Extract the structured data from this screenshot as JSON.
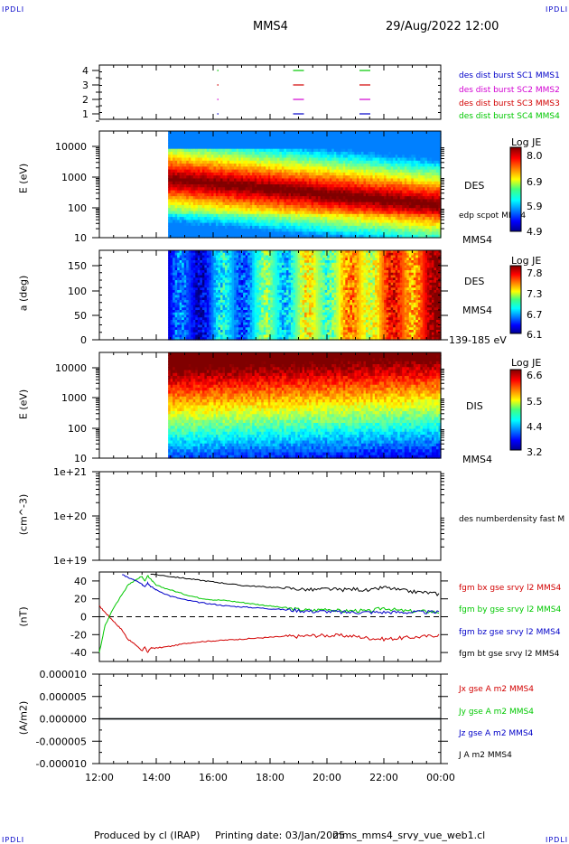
{
  "header": {
    "corner_tl": "IPDLI",
    "corner_tr": "IPDLI",
    "corner_bl": "IPDLI",
    "corner_br": "IPDLI",
    "spacecraft": "MMS4",
    "datetime": "29/Aug/2022 12:00"
  },
  "footer": {
    "produced_by": "Produced by cl (IRAP)",
    "printing_date": "Printing date: 03/Jan/2025",
    "filename": "mms_mms4_srvy_vue_web1.cl"
  },
  "colors": {
    "mms1": "#0000c8",
    "mms2": "#d200d2",
    "mms3": "#d20000",
    "mms4": "#00c800",
    "bx": "#d20000",
    "by": "#00c800",
    "bz": "#0000c8",
    "bt": "#000000"
  },
  "chart_data": [
    {
      "type": "scatter",
      "panel": "burst-availability",
      "x": [
        "16:10",
        "19:00",
        "21:20"
      ],
      "yticks": [
        "4",
        "3",
        "2",
        "1"
      ],
      "series": [
        {
          "name": "des dist burst SC1 MMS1",
          "y": 1
        },
        {
          "name": "des dist burst SC2 MMS2",
          "y": 2
        },
        {
          "name": "des dist burst SC3 MMS3",
          "y": 3
        },
        {
          "name": "des dist burst SC4 MMS4",
          "y": 4
        }
      ]
    },
    {
      "type": "heatmap",
      "panel": "des-energy",
      "ylabel": "E (eV)",
      "yscale": "log",
      "ylim": [
        10,
        30000
      ],
      "yticks": [
        "10000",
        "1000",
        "100",
        "10"
      ],
      "data_start": "14:25",
      "label": "DES",
      "label2": "edp scpot MMS4",
      "label3": "MMS4",
      "colorbar": {
        "title": "Log JE",
        "ticks": [
          "8.0",
          "6.9",
          "5.9",
          "4.9"
        ],
        "range": [
          4.9,
          8.2
        ]
      }
    },
    {
      "type": "heatmap",
      "panel": "des-pitch-angle",
      "ylabel": "a (deg)",
      "ylim": [
        0,
        180
      ],
      "yticks": [
        "150",
        "100",
        "50",
        "0"
      ],
      "data_start": "14:25",
      "label": "DES",
      "label2": "MMS4",
      "label3": "139-185 eV",
      "colorbar": {
        "title": "Log JE",
        "ticks": [
          "7.8",
          "7.3",
          "6.7",
          "6.1"
        ],
        "range": [
          6.1,
          7.9
        ]
      }
    },
    {
      "type": "heatmap",
      "panel": "dis-energy",
      "ylabel": "E (eV)",
      "yscale": "log",
      "ylim": [
        10,
        30000
      ],
      "yticks": [
        "10000",
        "1000",
        "100",
        "10"
      ],
      "data_start": "14:25",
      "label": "DIS",
      "label2": "MMS4",
      "colorbar": {
        "title": "Log JE",
        "ticks": [
          "6.6",
          "5.5",
          "4.4",
          "3.2"
        ],
        "range": [
          3.2,
          6.8
        ]
      }
    },
    {
      "type": "line",
      "panel": "number-density",
      "ylabel": "(cm^-3)",
      "yscale": "log",
      "ylim": [
        1e+19,
        1e+21
      ],
      "yticks": [
        "1e+21",
        "1e+20",
        "1e+19"
      ],
      "label": "des numberdensity fast M",
      "series": []
    },
    {
      "type": "line",
      "panel": "magnetic-field",
      "ylabel": "(nT)",
      "ylim": [
        -50,
        50
      ],
      "yticks": [
        "40",
        "20",
        "0",
        "-20",
        "-40"
      ],
      "x_hours": [
        12.0,
        12.2,
        12.5,
        12.8,
        13.0,
        13.3,
        13.5,
        13.6,
        13.7,
        13.8,
        14.0,
        14.5,
        15.0,
        15.5,
        16.0,
        16.5,
        17.0,
        17.5,
        18.0,
        18.5,
        19.0,
        19.5,
        20.0,
        20.5,
        21.0,
        21.5,
        22.0,
        22.5,
        23.0,
        23.5,
        24.0
      ],
      "series": [
        {
          "name": "fgm bx gse srvy l2 MMS4",
          "color": "#d20000",
          "values": [
            12,
            5,
            -5,
            -15,
            -25,
            -32,
            -38,
            -34,
            -40,
            -35,
            -35,
            -33,
            -30,
            -28,
            -27,
            -26,
            -25,
            -24,
            -23,
            -22,
            -22,
            -21,
            -21,
            -21,
            -22,
            -24,
            -25,
            -24,
            -23,
            -22,
            -20
          ]
        },
        {
          "name": "fgm by gse srvy l2 MMS4",
          "color": "#00c800",
          "values": [
            -40,
            -10,
            10,
            25,
            35,
            42,
            45,
            40,
            46,
            42,
            35,
            30,
            25,
            21,
            19,
            18,
            16,
            14,
            12,
            10,
            8,
            7,
            9,
            6,
            7,
            6,
            10,
            7,
            6,
            6,
            5
          ]
        },
        {
          "name": "fgm bz gse srvy l2 MMS4",
          "color": "#0000c8",
          "values": [
            null,
            null,
            null,
            47,
            44,
            40,
            36,
            34,
            38,
            34,
            30,
            23,
            19,
            16,
            14,
            12,
            11,
            10,
            9,
            8,
            7,
            6,
            6,
            5,
            5,
            5,
            5,
            5,
            5,
            5,
            5
          ]
        },
        {
          "name": "fgm bt gse srvy l2 MMS4",
          "color": "#000000",
          "values": [
            null,
            null,
            null,
            null,
            null,
            null,
            null,
            null,
            null,
            48,
            47,
            45,
            43,
            41,
            39,
            37,
            35,
            34,
            33,
            32,
            31,
            30,
            31,
            30,
            31,
            29,
            33,
            30,
            28,
            27,
            25
          ]
        }
      ]
    },
    {
      "type": "line",
      "panel": "current-density",
      "ylabel": "(A/m2)",
      "ylim": [
        -1e-05,
        1e-05
      ],
      "yticks": [
        "0.000010",
        "0.000005",
        "0.000000",
        "-0.000005",
        "-0.000010"
      ],
      "x_hours": [
        12.0,
        24.0
      ],
      "series": [
        {
          "name": "Jx gse A m2 MMS4",
          "color": "#d20000",
          "values": [
            0,
            0
          ]
        },
        {
          "name": "Jy gse A m2 MMS4",
          "color": "#00c800",
          "values": [
            0,
            0
          ]
        },
        {
          "name": "Jz gse A m2 MMS4",
          "color": "#0000c8",
          "values": [
            0,
            0
          ]
        },
        {
          "name": "J A m2 MMS4",
          "color": "#000000",
          "values": [
            0,
            0
          ]
        }
      ]
    }
  ],
  "x_axis": {
    "ticks": [
      "12:00",
      "14:00",
      "16:00",
      "18:00",
      "20:00",
      "22:00",
      "00:00"
    ]
  }
}
